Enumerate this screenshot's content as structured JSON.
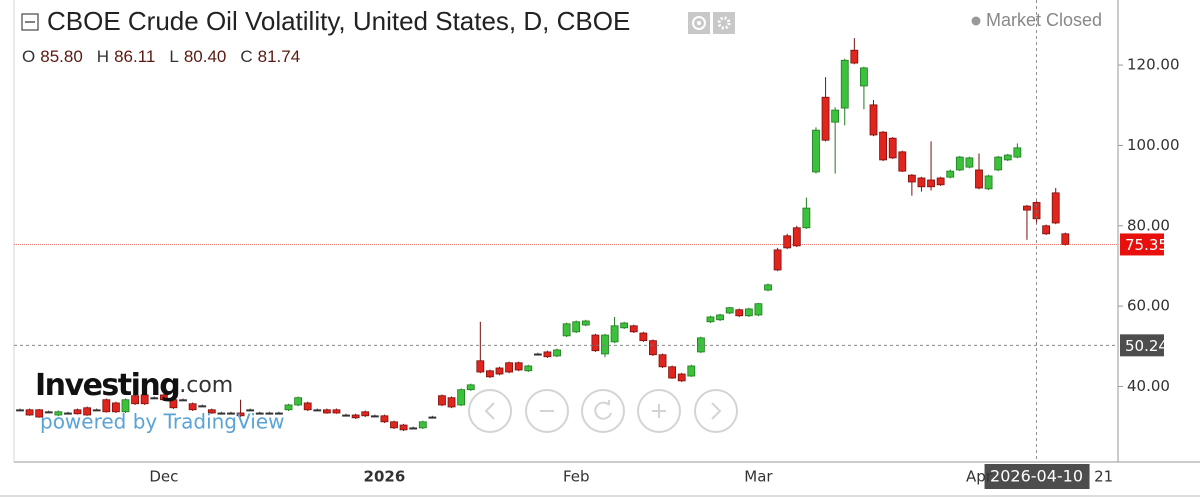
{
  "chart_data": {
    "type": "candlestick",
    "title": "CBOE Crude Oil Volatility, United States, D, CBOE",
    "status": "Market Closed",
    "legend_ohlc": [
      {
        "label": "O",
        "value": "85.80"
      },
      {
        "label": "H",
        "value": "86.11"
      },
      {
        "label": "L",
        "value": "80.40"
      },
      {
        "label": "C",
        "value": "81.74"
      }
    ],
    "categories": [
      null,
      null,
      null,
      null,
      null,
      null,
      null,
      null,
      null,
      null,
      null,
      null,
      null,
      null,
      null,
      "Dec",
      null,
      null,
      null,
      null,
      null,
      null,
      null,
      null,
      null,
      null,
      null,
      null,
      null,
      null,
      null,
      null,
      null,
      null,
      null,
      null,
      null,
      null,
      "2026",
      null,
      null,
      null,
      null,
      null,
      null,
      null,
      null,
      null,
      null,
      null,
      null,
      null,
      null,
      null,
      null,
      null,
      null,
      null,
      "Feb",
      null,
      null,
      null,
      null,
      null,
      null,
      null,
      null,
      null,
      null,
      null,
      null,
      null,
      null,
      null,
      null,
      null,
      null,
      "Mar",
      null,
      null,
      null,
      null,
      null,
      null,
      null,
      null,
      null,
      null,
      null,
      null,
      null,
      null,
      null,
      null,
      null,
      null,
      null,
      null,
      null,
      null,
      "Apr",
      null,
      null,
      null,
      null,
      null,
      null,
      null,
      null,
      null,
      null,
      null,
      null,
      "21"
    ],
    "open": [
      34.2,
      34.2,
      34.2,
      33.7,
      32.9,
      33.4,
      34.2,
      34.7,
      34.2,
      36.7,
      35.9,
      33.7,
      37.7,
      37.9,
      37.2,
      37.9,
      36.7,
      36.7,
      35.7,
      35.2,
      34.2,
      33.4,
      33.4,
      33.4,
      34.2,
      33.4,
      33.4,
      33.4,
      34.2,
      35.4,
      35.9,
      34.2,
      34.2,
      34.2,
      32.9,
      32.9,
      33.7,
      32.7,
      32.7,
      31.2,
      30.4,
      29.7,
      29.7,
      32.4,
      37.7,
      37.2,
      35.4,
      39.2,
      46.4,
      43.9,
      44.6,
      45.9,
      45.9,
      43.9,
      48.1,
      48.6,
      47.6,
      52.6,
      53.6,
      55.3,
      52.8,
      48.1,
      51.1,
      54.6,
      55.1,
      53.3,
      51.4,
      47.9,
      44.9,
      43.1,
      42.6,
      48.6,
      56.1,
      56.6,
      58.3,
      59.1,
      57.6,
      57.8,
      64.0,
      74.0,
      77.5,
      79.5,
      79.5,
      93.4,
      112.0,
      105.8,
      109.3,
      123.7,
      114.8,
      110.1,
      103.3,
      101.8,
      98.4,
      92.6,
      91.9,
      91.4,
      91.9,
      92.1,
      93.9,
      94.6,
      93.9,
      89.2,
      93.9,
      96.4,
      97.1,
      84.9,
      85.8,
      80.0,
      88.2,
      78.0,
      null,
      null,
      null,
      null
    ],
    "high": [
      34.5,
      34.5,
      34.4,
      34.0,
      34.0,
      33.7,
      34.5,
      35.0,
      34.5,
      37.0,
      36.2,
      37.0,
      38.0,
      38.2,
      37.5,
      38.2,
      37.0,
      37.0,
      36.0,
      35.5,
      34.5,
      33.7,
      33.7,
      36.7,
      34.5,
      33.7,
      33.7,
      33.7,
      35.7,
      37.5,
      36.2,
      34.5,
      34.5,
      34.5,
      33.2,
      33.2,
      34.0,
      33.0,
      33.0,
      31.5,
      30.7,
      30.0,
      31.5,
      32.7,
      38.0,
      37.5,
      39.5,
      40.7,
      56.1,
      44.2,
      44.9,
      46.2,
      46.2,
      45.4,
      48.4,
      48.9,
      49.4,
      55.9,
      56.4,
      56.6,
      53.1,
      53.1,
      57.3,
      56.1,
      55.4,
      53.6,
      51.7,
      48.2,
      45.2,
      43.4,
      45.4,
      52.4,
      57.6,
      58.1,
      59.8,
      59.4,
      59.6,
      60.8,
      65.6,
      74.5,
      78.0,
      80.0,
      87.0,
      104.5,
      117.0,
      109.5,
      121.6,
      126.7,
      119.6,
      111.3,
      103.6,
      102.1,
      98.7,
      92.9,
      92.2,
      101.0,
      92.2,
      94.0,
      97.4,
      97.2,
      98.0,
      92.7,
      97.4,
      97.9,
      100.5,
      85.2,
      86.11,
      80.3,
      89.4,
      78.3,
      null,
      null,
      null,
      null
    ],
    "low": [
      33.9,
      32.7,
      32.2,
      33.4,
      32.6,
      33.1,
      33.0,
      32.7,
      33.9,
      33.5,
      33.4,
      33.4,
      35.4,
      35.4,
      36.9,
      36.4,
      34.4,
      36.4,
      33.9,
      34.9,
      33.2,
      33.1,
      33.1,
      32.4,
      33.9,
      33.1,
      33.1,
      33.1,
      33.9,
      35.1,
      33.9,
      33.9,
      33.2,
      33.2,
      32.6,
      31.9,
      32.4,
      32.4,
      30.9,
      29.4,
      28.9,
      29.4,
      29.4,
      32.1,
      35.1,
      34.6,
      35.1,
      38.9,
      43.3,
      42.1,
      42.8,
      43.3,
      43.8,
      43.6,
      47.8,
      47.1,
      47.3,
      52.3,
      53.3,
      55.0,
      48.6,
      47.3,
      50.8,
      54.3,
      53.3,
      51.1,
      47.6,
      44.6,
      41.9,
      41.1,
      42.4,
      48.3,
      55.8,
      56.3,
      58.0,
      57.3,
      57.3,
      57.5,
      63.7,
      68.7,
      74.2,
      74.7,
      79.2,
      93.0,
      101.0,
      93.0,
      105.0,
      120.2,
      109.0,
      102.3,
      96.1,
      96.6,
      93.4,
      87.5,
      88.5,
      88.8,
      89.9,
      91.8,
      93.6,
      94.3,
      89.1,
      88.9,
      93.6,
      96.1,
      96.8,
      76.5,
      80.4,
      77.7,
      80.4,
      75.1,
      null,
      null,
      null,
      null
    ],
    "close": [
      34.2,
      32.9,
      32.4,
      33.7,
      33.7,
      33.4,
      33.2,
      32.9,
      34.2,
      33.7,
      33.7,
      36.7,
      35.7,
      35.7,
      37.2,
      36.7,
      34.7,
      36.7,
      34.2,
      35.2,
      33.4,
      33.4,
      33.4,
      32.7,
      34.2,
      33.4,
      33.4,
      33.4,
      35.4,
      37.2,
      34.2,
      34.2,
      33.4,
      33.4,
      32.9,
      32.2,
      32.7,
      32.7,
      31.2,
      29.7,
      29.2,
      29.7,
      31.2,
      32.4,
      35.4,
      34.9,
      39.2,
      40.4,
      43.6,
      42.4,
      43.1,
      43.6,
      44.1,
      45.1,
      48.1,
      47.4,
      49.1,
      55.6,
      56.1,
      56.3,
      48.9,
      52.8,
      55.1,
      55.8,
      53.6,
      51.4,
      47.9,
      44.9,
      42.1,
      41.4,
      45.1,
      52.1,
      57.3,
      57.8,
      59.6,
      57.6,
      59.3,
      60.6,
      65.3,
      69.0,
      74.5,
      75.0,
      84.4,
      103.8,
      101.3,
      108.8,
      121.2,
      120.5,
      119.3,
      102.6,
      96.4,
      96.9,
      93.6,
      90.9,
      89.7,
      89.7,
      90.2,
      93.6,
      97.1,
      96.9,
      89.4,
      92.4,
      97.1,
      97.6,
      99.4,
      83.9,
      81.74,
      78.0,
      80.7,
      75.35,
      null,
      null,
      null,
      null
    ],
    "up_color": "#3cc13c",
    "down_color": "#e0251f",
    "doji_color": "#333333",
    "ylim": [
      21.2,
      136.2
    ],
    "yticks": [
      {
        "value": 40,
        "label": "40.00"
      },
      {
        "value": 60,
        "label": "60.00"
      },
      {
        "value": 80,
        "label": "80.00"
      },
      {
        "value": 100,
        "label": "100.00"
      },
      {
        "value": 120,
        "label": "120.00"
      }
    ],
    "grid": false,
    "crosshair": {
      "date": "2026-04-10",
      "value": 50.24
    },
    "watermark": {
      "brand": "Investing",
      "suffix": ".com",
      "credit": "powered by TradingView"
    }
  }
}
